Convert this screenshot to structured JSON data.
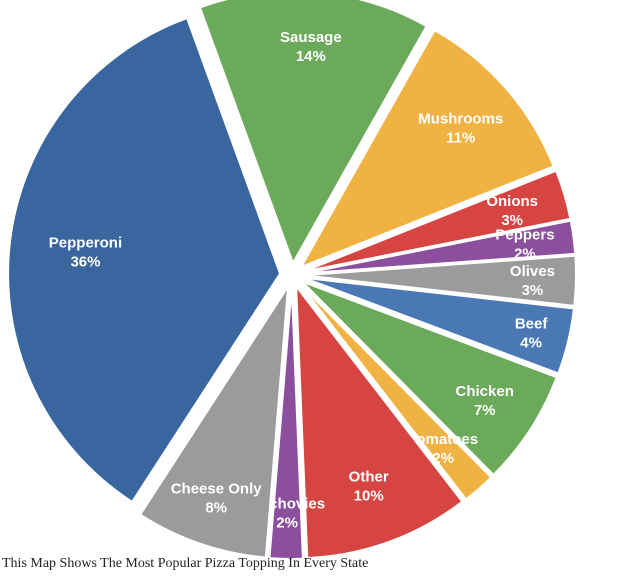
{
  "chart_data": {
    "type": "pie",
    "title": "",
    "caption": "This Map Shows The Most Popular Pizza Topping In Every State",
    "slices": [
      {
        "name": "Sausage",
        "value": 14,
        "label": "14%",
        "color": "#6BAA5B"
      },
      {
        "name": "Mushrooms",
        "value": 11,
        "label": "11%",
        "color": "#F0B243"
      },
      {
        "name": "Onions",
        "value": 3,
        "label": "3%",
        "color": "#D64541"
      },
      {
        "name": "Peppers",
        "value": 2,
        "label": "2%",
        "color": "#8B4F9E"
      },
      {
        "name": "Olives",
        "value": 3,
        "label": "3%",
        "color": "#9B9B9B"
      },
      {
        "name": "Beef",
        "value": 4,
        "label": "4%",
        "color": "#4A78B4"
      },
      {
        "name": "Chicken",
        "value": 7,
        "label": "7%",
        "color": "#6BAA5B"
      },
      {
        "name": "Tomatoes",
        "value": 2,
        "label": "2%",
        "color": "#F0B243"
      },
      {
        "name": "Other",
        "value": 10,
        "label": "10%",
        "color": "#D64541"
      },
      {
        "name": "Anchovies",
        "value": 2,
        "label": "2%",
        "color": "#8B4F9E"
      },
      {
        "name": "Cheese Only",
        "value": 8,
        "label": "8%",
        "color": "#9B9B9B"
      },
      {
        "name": "Pepperoni",
        "value": 36,
        "label": "36%",
        "color": "#3A66A0"
      }
    ]
  }
}
